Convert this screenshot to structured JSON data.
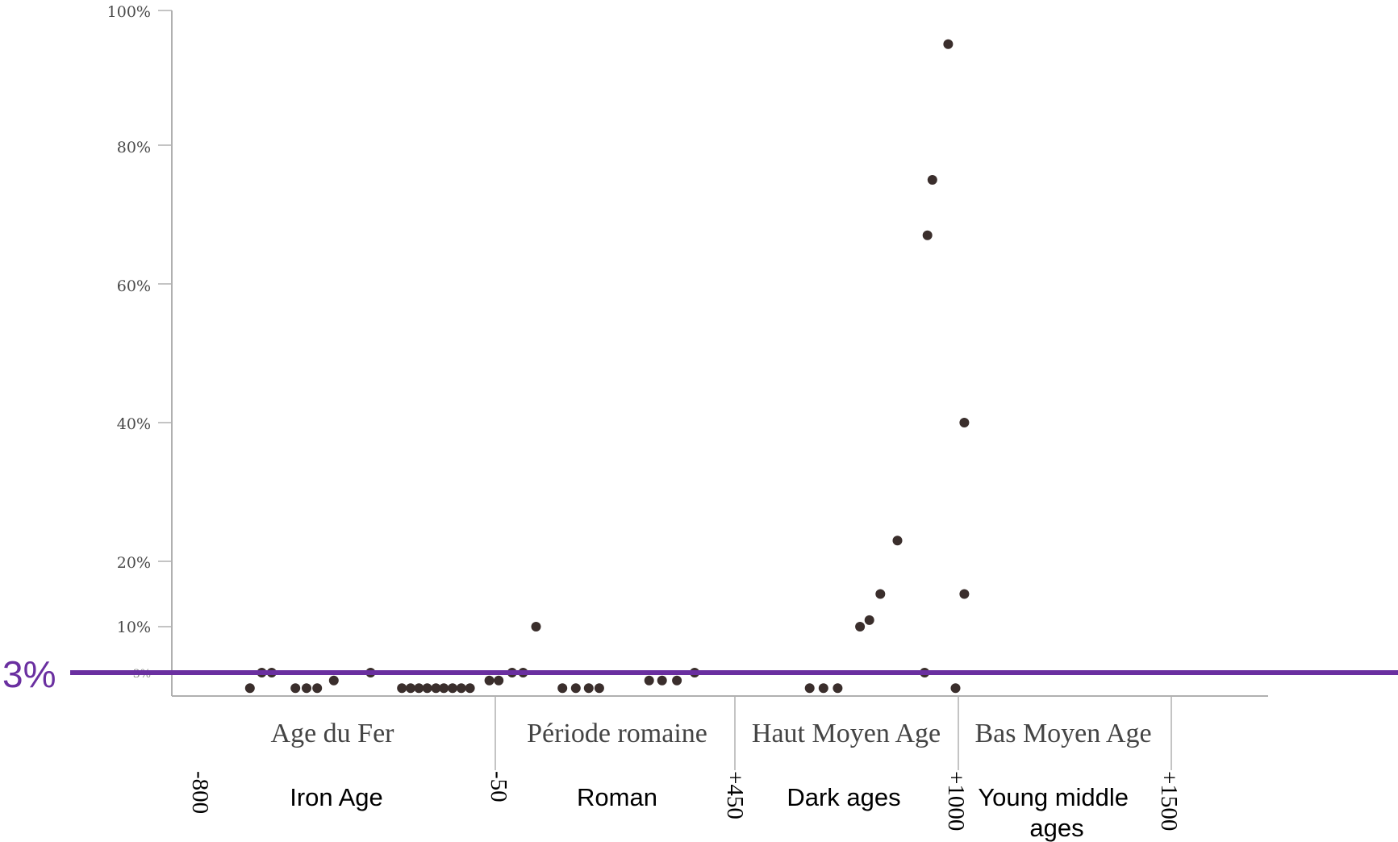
{
  "chart_data": {
    "type": "scatter",
    "yticks": [
      "100%",
      "80%",
      "60%",
      "40%",
      "20%",
      "10%",
      "3%"
    ],
    "ylim": [
      0,
      100
    ],
    "periods_fr": [
      "Age du Fer",
      "Période romaine",
      "Haut Moyen Age",
      "Bas Moyen Age"
    ],
    "periods_en": [
      "Iron Age",
      "Roman",
      "Dark ages",
      "Young middle ages"
    ],
    "year_labels": [
      "-800",
      "-50",
      "+450",
      "+1000",
      "+1500"
    ],
    "threshold": {
      "label": "3%",
      "value": 3,
      "color": "#6a2fa0"
    },
    "point_color": "#3a2e2c",
    "points": [
      {
        "x": -670,
        "y": 1
      },
      {
        "x": -640,
        "y": 3
      },
      {
        "x": -615,
        "y": 3
      },
      {
        "x": -555,
        "y": 1
      },
      {
        "x": -527,
        "y": 1
      },
      {
        "x": -500,
        "y": 1
      },
      {
        "x": -458,
        "y": 2
      },
      {
        "x": -365,
        "y": 3
      },
      {
        "x": -286,
        "y": 1
      },
      {
        "x": -264,
        "y": 1
      },
      {
        "x": -243,
        "y": 1
      },
      {
        "x": -222,
        "y": 1
      },
      {
        "x": -200,
        "y": 1
      },
      {
        "x": -180,
        "y": 1
      },
      {
        "x": -158,
        "y": 1
      },
      {
        "x": -136,
        "y": 1
      },
      {
        "x": -114,
        "y": 1
      },
      {
        "x": -65,
        "y": 2
      },
      {
        "x": -43,
        "y": 2
      },
      {
        "x": -15,
        "y": 3
      },
      {
        "x": 8,
        "y": 3
      },
      {
        "x": 35,
        "y": 10
      },
      {
        "x": 90,
        "y": 1
      },
      {
        "x": 118,
        "y": 1
      },
      {
        "x": 145,
        "y": 1
      },
      {
        "x": 167,
        "y": 1
      },
      {
        "x": 271,
        "y": 2
      },
      {
        "x": 298,
        "y": 2
      },
      {
        "x": 329,
        "y": 2
      },
      {
        "x": 366,
        "y": 3
      },
      {
        "x": 634,
        "y": 1
      },
      {
        "x": 668,
        "y": 1
      },
      {
        "x": 703,
        "y": 1
      },
      {
        "x": 758,
        "y": 10
      },
      {
        "x": 781,
        "y": 11
      },
      {
        "x": 808,
        "y": 15
      },
      {
        "x": 850,
        "y": 23
      },
      {
        "x": 917,
        "y": 3
      },
      {
        "x": 924,
        "y": 67
      },
      {
        "x": 936,
        "y": 75
      },
      {
        "x": 975,
        "y": 95
      },
      {
        "x": 993,
        "y": 1
      },
      {
        "x": 1014,
        "y": 40
      },
      {
        "x": 1014,
        "y": 15
      }
    ]
  }
}
